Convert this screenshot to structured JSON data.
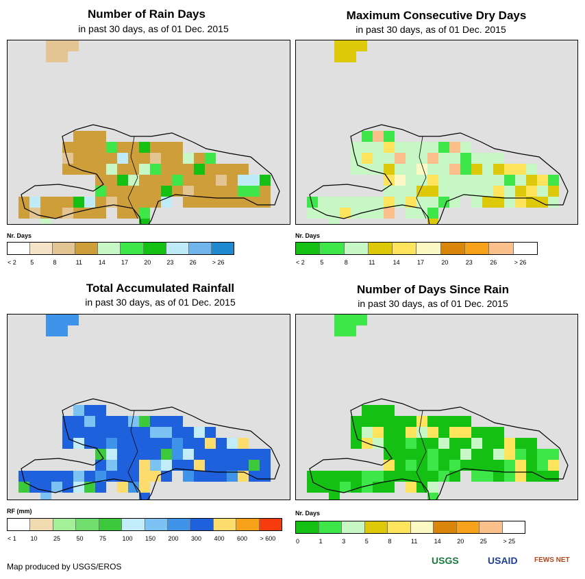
{
  "panels": [
    {
      "title": "Number of Rain Days",
      "subtitle": "in past 30 days, as of 01 Dec. 2015",
      "legend_title": "Nr. Days",
      "legend_ticks": [
        "< 2",
        "5",
        "8",
        "11",
        "14",
        "17",
        "20",
        "23",
        "26",
        "> 26"
      ],
      "legend_colors": [
        "#ffffff",
        "#f5e3c8",
        "#e2c592",
        "#cd9e3a",
        "#c7f7c4",
        "#3ee64a",
        "#13c013",
        "#bfeaf7",
        "#70b6ec",
        "#1f8ad0"
      ],
      "base": "#cd9e3a",
      "patches": [
        "#e2c592",
        "#c7f7c4",
        "#3ee64a",
        "#13c013",
        "#bfeaf7"
      ]
    },
    {
      "title": "Maximum Consecutive Dry Days",
      "subtitle": "in past 30 days, as of 01 Dec. 2015",
      "legend_title": "Nr. Days",
      "legend_ticks": [
        "< 2",
        "5",
        "8",
        "11",
        "14",
        "17",
        "20",
        "23",
        "26",
        "> 26"
      ],
      "legend_colors": [
        "#13c013",
        "#3ee64a",
        "#c7f7c4",
        "#ddc90a",
        "#fde45c",
        "#fdf9c4",
        "#d9860a",
        "#f7a21a",
        "#fbbf8b",
        "#ffffff"
      ],
      "base": "#c7f7c4",
      "patches": [
        "#ddc90a",
        "#fde45c",
        "#3ee64a",
        "#fdf9c4",
        "#fbbf8b"
      ]
    },
    {
      "title": "Total Accumulated Rainfall",
      "subtitle": "in past 30 days, as of 01 Dec. 2015",
      "legend_title": "RF (mm)",
      "legend_ticks": [
        "< 1",
        "10",
        "25",
        "50",
        "75",
        "100",
        "150",
        "200",
        "300",
        "400",
        "600",
        "> 600"
      ],
      "legend_colors": [
        "#ffffff",
        "#f0dbb0",
        "#a4f098",
        "#6fde6d",
        "#3cc93c",
        "#c2ecf9",
        "#7cc3f3",
        "#3f93e8",
        "#1f60dd",
        "#fddc6e",
        "#f7a21a",
        "#f63c0c"
      ],
      "base": "#1f60dd",
      "patches": [
        "#3f93e8",
        "#7cc3f3",
        "#c2ecf9",
        "#fddc6e",
        "#3cc93c"
      ]
    },
    {
      "title": "Number of Days Since Rain",
      "subtitle": "in past 30 days, as of 01 Dec. 2015",
      "legend_title": "Nr. Days",
      "legend_ticks": [
        "0",
        "1",
        "3",
        "5",
        "8",
        "11",
        "14",
        "20",
        "25",
        "> 25"
      ],
      "legend_colors": [
        "#13c013",
        "#3ee64a",
        "#c7f7c4",
        "#ddc90a",
        "#fde45c",
        "#fdf9c4",
        "#d9860a",
        "#f7a21a",
        "#fbbf8b",
        "#ffffff"
      ],
      "base": "#13c013",
      "patches": [
        "#3ee64a",
        "#3ee64a",
        "#fde45c",
        "#3ee64a",
        "#c7f7c4"
      ]
    }
  ],
  "credit": "Map produced by USGS/EROS",
  "logos": [
    "USGS",
    "USAID",
    "FEWS NET"
  ]
}
